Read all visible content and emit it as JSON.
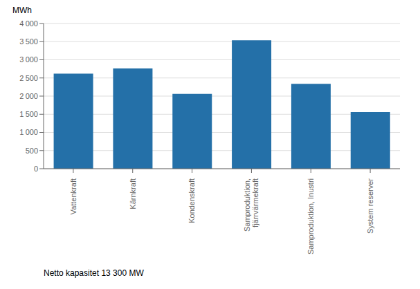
{
  "chart_data": {
    "type": "bar",
    "y_label": "MWh",
    "annotations": [
      "Netto kapasitet 13 300 MW"
    ],
    "categories": [
      "Vattenkraft",
      "Kärnkraft",
      "Kondenskraft",
      "Samproduktion,\nfjärrvärmekraft",
      "Samproduktion, Inustri",
      "System reserver"
    ],
    "values": [
      2620,
      2760,
      2060,
      3540,
      2340,
      1560
    ],
    "color": "#2470a8",
    "ylim": [
      0,
      4000
    ],
    "yticks": [
      0,
      500,
      {
        "value": 1000,
        "label": "1 000"
      },
      {
        "value": 1500,
        "label": "1 500"
      },
      {
        "value": 2000,
        "label": "2 000"
      },
      {
        "value": 2500,
        "label": "2 500"
      },
      {
        "value": 3000,
        "label": "3 000"
      },
      {
        "value": 3500,
        "label": "3 500"
      },
      {
        "value": 4000,
        "label": "4 000"
      }
    ],
    "grid": true
  }
}
